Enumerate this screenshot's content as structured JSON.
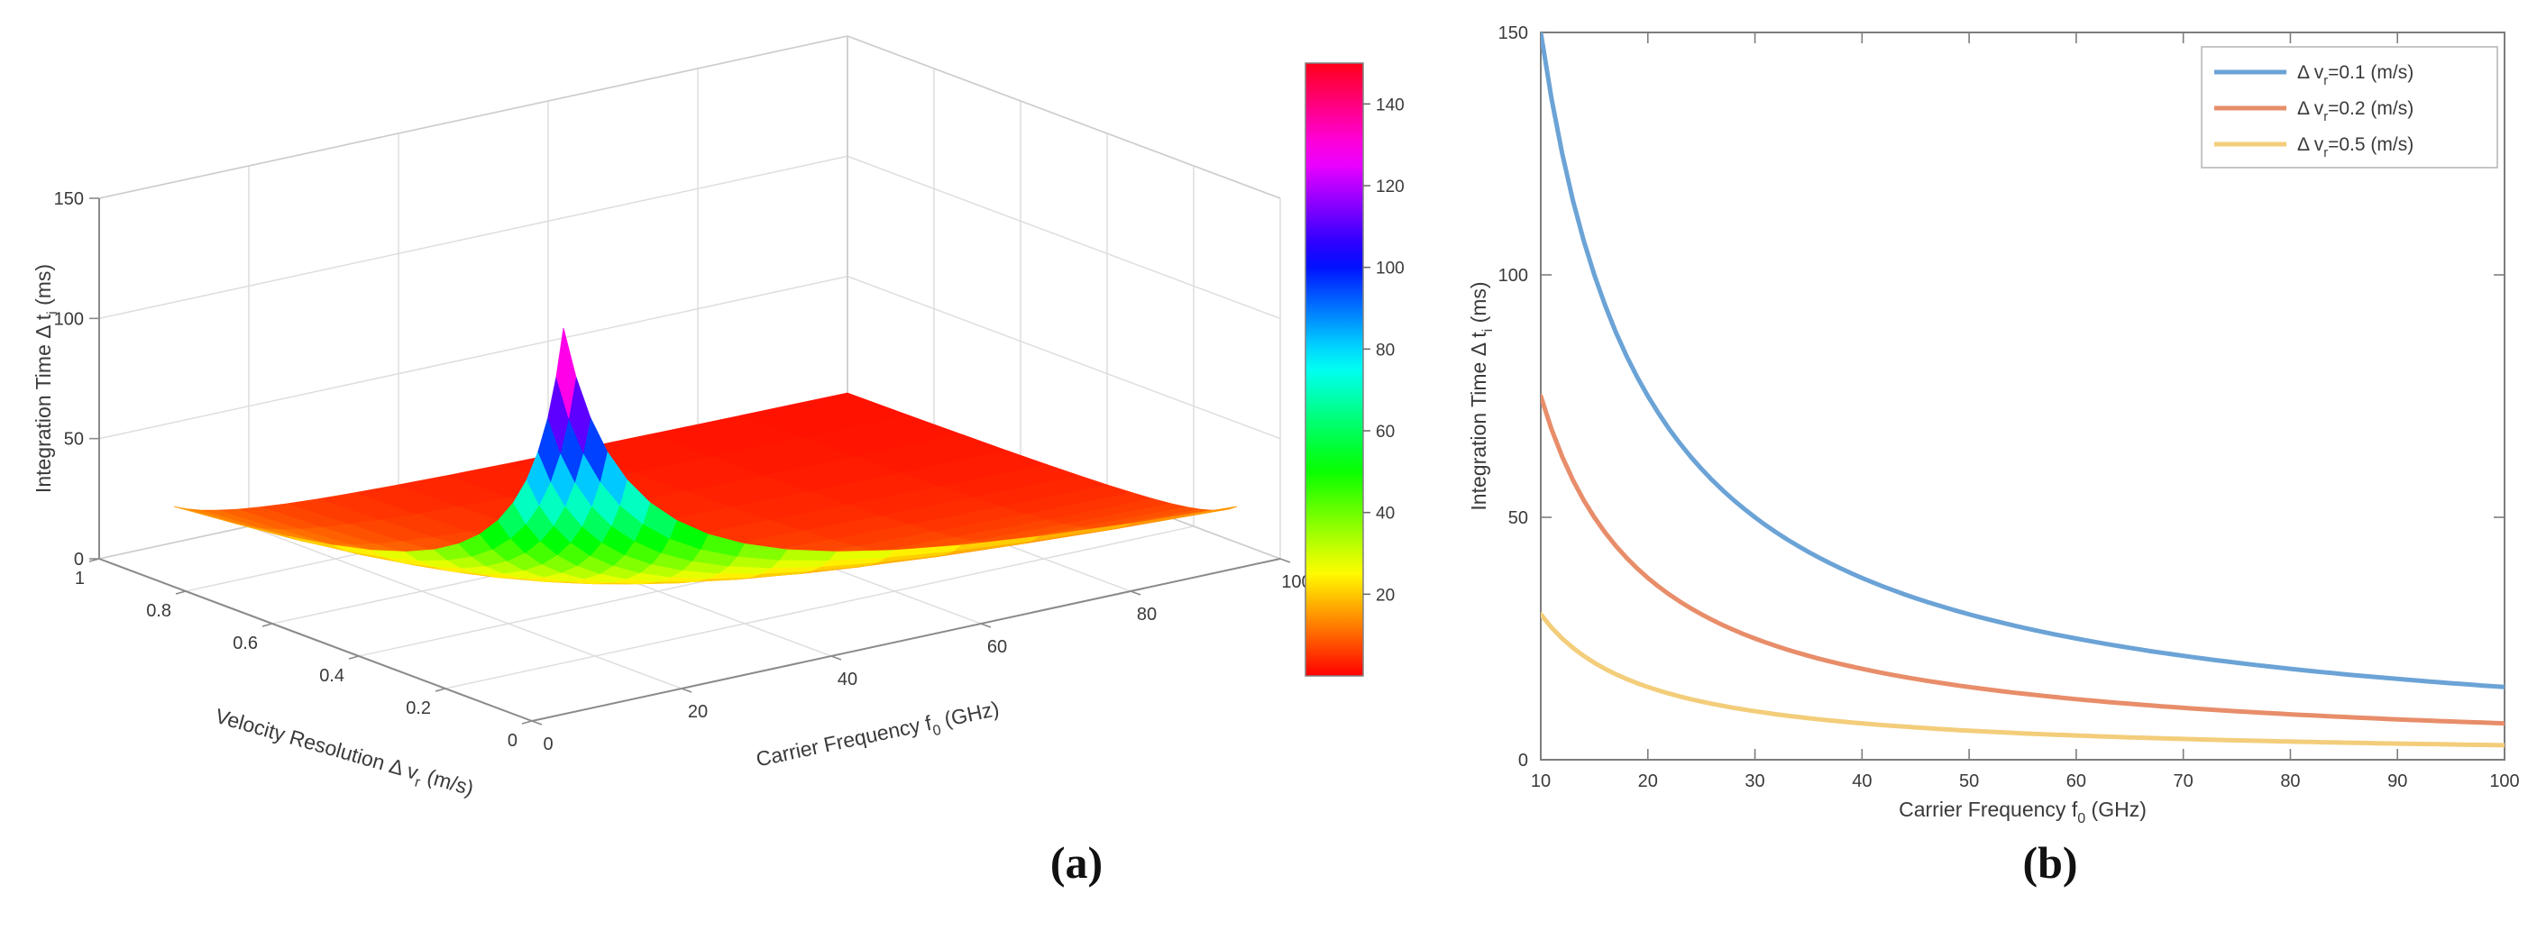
{
  "figure": {
    "caption_a": "(a)",
    "caption_b": "(b)"
  },
  "chart_data": [
    {
      "type": "surface3d",
      "xlabel_parts": [
        {
          "t": "Velocity Resolution Δ v",
          "sub": false
        },
        {
          "t": "r",
          "sub": true
        },
        {
          "t": " (m/s)",
          "sub": false
        }
      ],
      "ylabel_parts": [
        {
          "t": "Carrier Frequency f",
          "sub": false
        },
        {
          "t": "0",
          "sub": true
        },
        {
          "t": " (GHz)",
          "sub": false
        }
      ],
      "zlabel_parts": [
        {
          "t": "Integration Time Δ t",
          "sub": false
        },
        {
          "t": "i",
          "sub": true
        },
        {
          "t": " (ms)",
          "sub": false
        }
      ],
      "x_ticks": [
        0,
        0.2,
        0.4,
        0.6,
        0.8,
        1
      ],
      "y_ticks": [
        0,
        20,
        40,
        60,
        80,
        100
      ],
      "z_ticks": [
        0,
        50,
        100,
        150
      ],
      "v_range": [
        0,
        1
      ],
      "f_range": [
        0,
        100
      ],
      "z_range": [
        0,
        150
      ],
      "formula": "dt_ms = k / (f_GHz * dv)",
      "k": 150,
      "z_cap": 150,
      "colormap": "hsv",
      "colorbar_ticks": [
        20,
        40,
        60,
        80,
        100,
        120,
        140
      ],
      "sample_grid": {
        "dv": [
          0.1,
          0.2,
          0.3,
          0.4,
          0.5,
          0.6,
          0.7,
          0.8,
          0.9,
          1.0
        ],
        "f_GHz": [
          10,
          20,
          30,
          40,
          50,
          60,
          70,
          80,
          90,
          100
        ],
        "dt_ms": [
          [
            150,
            75,
            50,
            37.5,
            30,
            25,
            21.4,
            18.8,
            16.7,
            15
          ],
          [
            75,
            37.5,
            25,
            18.8,
            15,
            12.5,
            10.7,
            9.4,
            8.3,
            7.5
          ],
          [
            50,
            25,
            16.7,
            12.5,
            10,
            8.3,
            7.1,
            6.3,
            5.6,
            5
          ],
          [
            37.5,
            18.8,
            12.5,
            9.4,
            7.5,
            6.3,
            5.4,
            4.7,
            4.2,
            3.8
          ],
          [
            30,
            15,
            10,
            7.5,
            6,
            5,
            4.3,
            3.8,
            3.3,
            3
          ],
          [
            25,
            12.5,
            8.3,
            6.3,
            5,
            4.2,
            3.6,
            3.1,
            2.8,
            2.5
          ],
          [
            21.4,
            10.7,
            7.1,
            5.4,
            4.3,
            3.6,
            3.1,
            2.7,
            2.4,
            2.1
          ],
          [
            18.8,
            9.4,
            6.3,
            4.7,
            3.8,
            3.1,
            2.7,
            2.3,
            2.1,
            1.9
          ],
          [
            16.7,
            8.3,
            5.6,
            4.2,
            3.3,
            2.8,
            2.5,
            2.1,
            1.9,
            1.7
          ],
          [
            15,
            7.5,
            5,
            3.8,
            3,
            2.5,
            2.1,
            1.9,
            1.7,
            1.5
          ]
        ]
      }
    },
    {
      "type": "line",
      "xlabel_parts": [
        {
          "t": "Carrier Frequency f",
          "sub": false
        },
        {
          "t": "0",
          "sub": true
        },
        {
          "t": " (GHz)",
          "sub": false
        }
      ],
      "ylabel_parts": [
        {
          "t": "Integration Time Δ t",
          "sub": false
        },
        {
          "t": "i",
          "sub": true
        },
        {
          "t": " (ms)",
          "sub": false
        }
      ],
      "xlim": [
        10,
        100
      ],
      "ylim": [
        0,
        150
      ],
      "xticks": [
        10,
        20,
        30,
        40,
        50,
        60,
        70,
        80,
        90,
        100
      ],
      "yticks": [
        0,
        50,
        100,
        150
      ],
      "grid": false,
      "legend_position": "top-right",
      "k": 150,
      "x": [
        10,
        15,
        20,
        25,
        30,
        35,
        40,
        45,
        50,
        55,
        60,
        65,
        70,
        75,
        80,
        85,
        90,
        95,
        100
      ],
      "series": [
        {
          "label_parts": [
            {
              "t": "Δ v",
              "sub": false
            },
            {
              "t": "r",
              "sub": true
            },
            {
              "t": "=0.1 (m/s)",
              "sub": false
            }
          ],
          "dv": 0.1,
          "color": "#6ba3d6",
          "values": [
            150,
            100,
            75,
            60,
            50,
            42.9,
            37.5,
            33.3,
            30,
            27.3,
            25,
            23.1,
            21.4,
            20,
            18.8,
            17.6,
            16.7,
            15.8,
            15
          ]
        },
        {
          "label_parts": [
            {
              "t": "Δ v",
              "sub": false
            },
            {
              "t": "r",
              "sub": true
            },
            {
              "t": "=0.2 (m/s)",
              "sub": false
            }
          ],
          "dv": 0.2,
          "color": "#e88d6a",
          "values": [
            75,
            50,
            37.5,
            30,
            25,
            21.4,
            18.8,
            16.7,
            15,
            13.6,
            12.5,
            11.5,
            10.7,
            10,
            9.4,
            8.8,
            8.3,
            7.9,
            7.5
          ]
        },
        {
          "label_parts": [
            {
              "t": "Δ v",
              "sub": false
            },
            {
              "t": "r",
              "sub": true
            },
            {
              "t": "=0.5 (m/s)",
              "sub": false
            }
          ],
          "dv": 0.5,
          "color": "#f3cd7a",
          "values": [
            30,
            20,
            15,
            12,
            10,
            8.6,
            7.5,
            6.7,
            6,
            5.5,
            5,
            4.6,
            4.3,
            4,
            3.8,
            3.5,
            3.3,
            3.2,
            3
          ]
        }
      ]
    }
  ]
}
